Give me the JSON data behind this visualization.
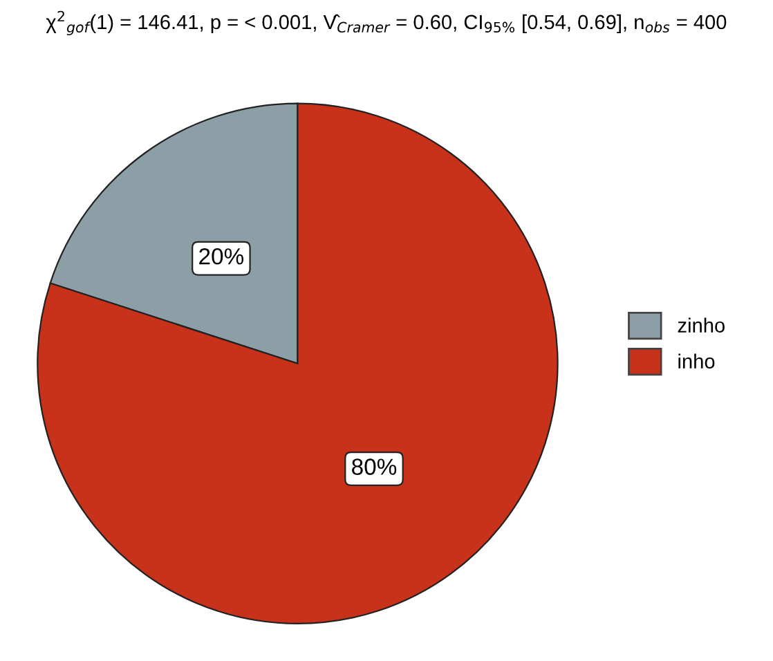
{
  "chart_data": {
    "type": "pie",
    "title": "χ$^{2}$$_{gof}$(1) = 146.41, p = < 0.001, V̂$_{Cramer}$ = 0.60, CI$_{95%}$ [0.54, 0.69], n$_{obs}$ = 400",
    "categories": [
      "zinho",
      "inho"
    ],
    "values": [
      20,
      80
    ],
    "colors": [
      "#8c9ea6",
      "#c8321a"
    ],
    "value_labels": [
      "20%",
      "80%"
    ],
    "legend": "right"
  }
}
